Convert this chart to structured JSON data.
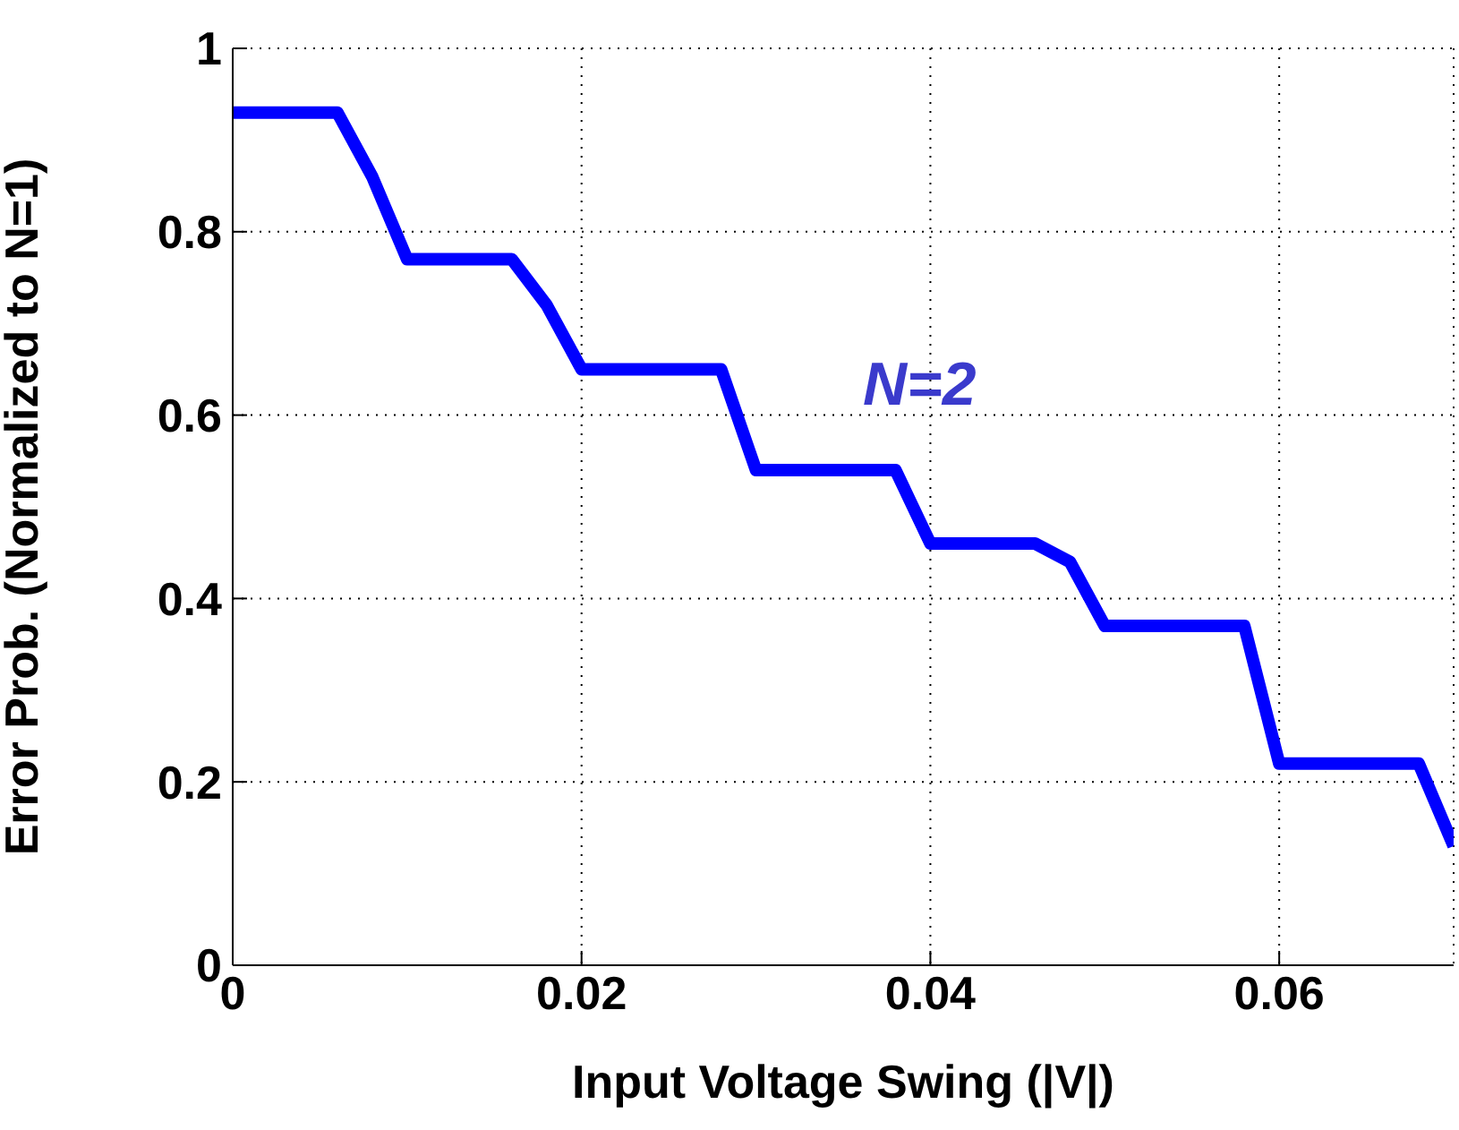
{
  "chart_data": {
    "type": "line",
    "xlabel": "Input Voltage Swing (|V|)",
    "ylabel": "Error Prob. (Normalized to N=1)",
    "x": [
      0,
      0.006,
      0.008,
      0.01,
      0.016,
      0.018,
      0.02,
      0.028,
      0.03,
      0.038,
      0.04,
      0.046,
      0.048,
      0.05,
      0.058,
      0.06,
      0.068,
      0.07
    ],
    "series": [
      {
        "color": "#0000ff",
        "values": [
          0.93,
          0.93,
          0.86,
          0.77,
          0.77,
          0.72,
          0.65,
          0.65,
          0.54,
          0.54,
          0.46,
          0.46,
          0.44,
          0.37,
          0.37,
          0.22,
          0.22,
          0.13
        ]
      }
    ],
    "xlim": [
      0,
      0.07
    ],
    "xticks": [
      0,
      0.02,
      0.04,
      0.06
    ],
    "ylim": [
      0,
      1
    ],
    "yticks": [
      0,
      0.2,
      0.4,
      0.6,
      0.8,
      1
    ],
    "grid": true,
    "marker": "none",
    "line_style": "solid",
    "annotations": [
      "N=2"
    ]
  }
}
